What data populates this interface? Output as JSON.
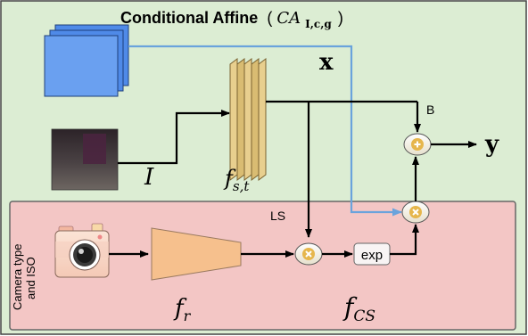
{
  "title": {
    "text": "Conditional Affine",
    "formula_prefix": "(",
    "formula_main": "CA",
    "formula_sub": "I,c,g",
    "formula_suffix": ")"
  },
  "labels": {
    "x": "x",
    "y": "y",
    "I": "I",
    "f_st_main": "f",
    "f_st_sub": "s,t",
    "f_r_main": "f",
    "f_r_sub": "r",
    "f_cs_main": "f",
    "f_cs_sub": "CS",
    "B": "B",
    "LS": "LS",
    "exp": "exp",
    "camera_line1": "Camera type",
    "camera_line2": "and ISO"
  },
  "colors": {
    "outer_fill": "#dcedd3",
    "outer_border": "#444444",
    "inner_fill": "#f3c6c5",
    "inner_border": "#666666",
    "feature_blue": "#4f8ae8",
    "filter_yellow": "#e8cf8e",
    "fr_fill": "#f6c08d",
    "blue_arrow": "#6aa3dc",
    "op_fill": "#f6efd3",
    "op_icon": "#e6b64c"
  },
  "icons": {
    "add": "plus-circle-icon",
    "multiply": "times-circle-icon",
    "camera": "camera-icon"
  }
}
